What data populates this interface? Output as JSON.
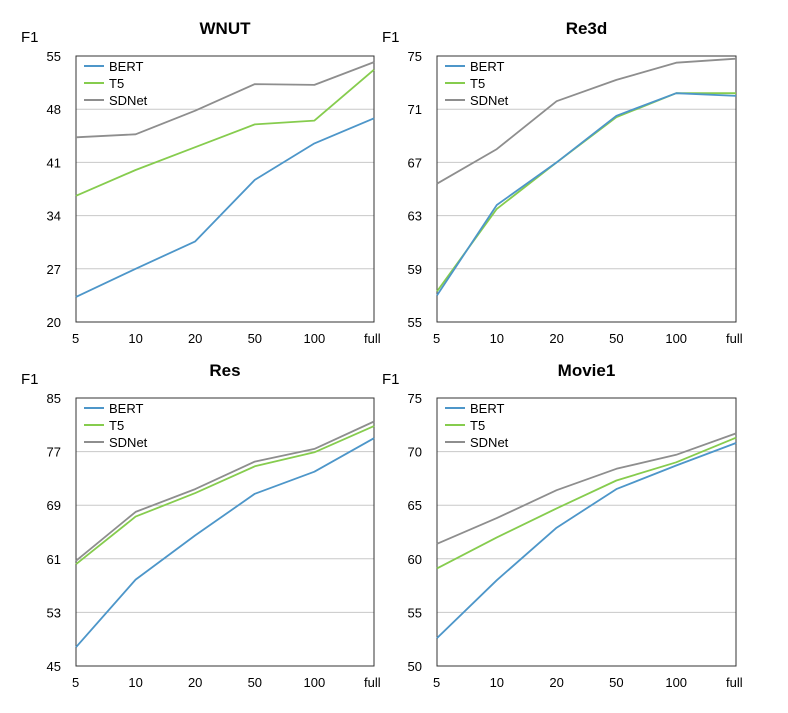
{
  "colors": {
    "BERT": "#4d96c9",
    "T5": "#86cc4e",
    "SDNet": "#8e8e8e"
  },
  "chart_data": [
    {
      "type": "line",
      "title": "WNUT",
      "ylabel": "F1",
      "xlabel": "",
      "categories": [
        "5",
        "10",
        "20",
        "50",
        "100",
        "full"
      ],
      "yticks": [
        "20",
        "27",
        "34",
        "41",
        "48",
        "55"
      ],
      "ylim": [
        20,
        55
      ],
      "series": [
        {
          "name": "BERT",
          "values": [
            23.3,
            27.0,
            30.6,
            38.7,
            43.5,
            46.8
          ]
        },
        {
          "name": "T5",
          "values": [
            36.6,
            40.0,
            43.0,
            46.0,
            46.5,
            53.2
          ]
        },
        {
          "name": "SDNet",
          "values": [
            44.3,
            44.7,
            47.8,
            51.3,
            51.2,
            54.2
          ]
        }
      ]
    },
    {
      "type": "line",
      "title": "Re3d",
      "ylabel": "F1",
      "xlabel": "",
      "categories": [
        "5",
        "10",
        "20",
        "50",
        "100",
        "full"
      ],
      "yticks": [
        "55",
        "59",
        "63",
        "67",
        "71",
        "75"
      ],
      "ylim": [
        55,
        75
      ],
      "series": [
        {
          "name": "BERT",
          "values": [
            57.0,
            63.8,
            67.0,
            70.5,
            72.2,
            72.0
          ]
        },
        {
          "name": "T5",
          "values": [
            57.3,
            63.5,
            67.0,
            70.4,
            72.2,
            72.2
          ]
        },
        {
          "name": "SDNet",
          "values": [
            65.4,
            68.0,
            71.6,
            73.2,
            74.5,
            74.8
          ]
        }
      ]
    },
    {
      "type": "line",
      "title": "Res",
      "ylabel": "F1",
      "xlabel": "",
      "categories": [
        "5",
        "10",
        "20",
        "50",
        "100",
        "full"
      ],
      "yticks": [
        "45",
        "53",
        "61",
        "69",
        "77",
        "85"
      ],
      "ylim": [
        45,
        85
      ],
      "series": [
        {
          "name": "BERT",
          "values": [
            47.8,
            57.9,
            64.5,
            70.7,
            74.0,
            79.0
          ]
        },
        {
          "name": "T5",
          "values": [
            60.2,
            67.3,
            70.8,
            74.8,
            76.9,
            80.8
          ]
        },
        {
          "name": "SDNet",
          "values": [
            60.7,
            68.0,
            71.4,
            75.5,
            77.4,
            81.5
          ]
        }
      ]
    },
    {
      "type": "line",
      "title": "Movie1",
      "ylabel": "F1",
      "xlabel": "",
      "categories": [
        "5",
        "10",
        "20",
        "50",
        "100",
        "full"
      ],
      "yticks": [
        "50",
        "55",
        "60",
        "65",
        "70",
        "75"
      ],
      "ylim": [
        50,
        75
      ],
      "series": [
        {
          "name": "BERT",
          "values": [
            52.6,
            58.0,
            62.9,
            66.5,
            68.7,
            70.8
          ]
        },
        {
          "name": "T5",
          "values": [
            59.1,
            62.0,
            64.7,
            67.3,
            69.0,
            71.3
          ]
        },
        {
          "name": "SDNet",
          "values": [
            61.4,
            63.8,
            66.4,
            68.4,
            69.7,
            71.7
          ]
        }
      ]
    }
  ]
}
